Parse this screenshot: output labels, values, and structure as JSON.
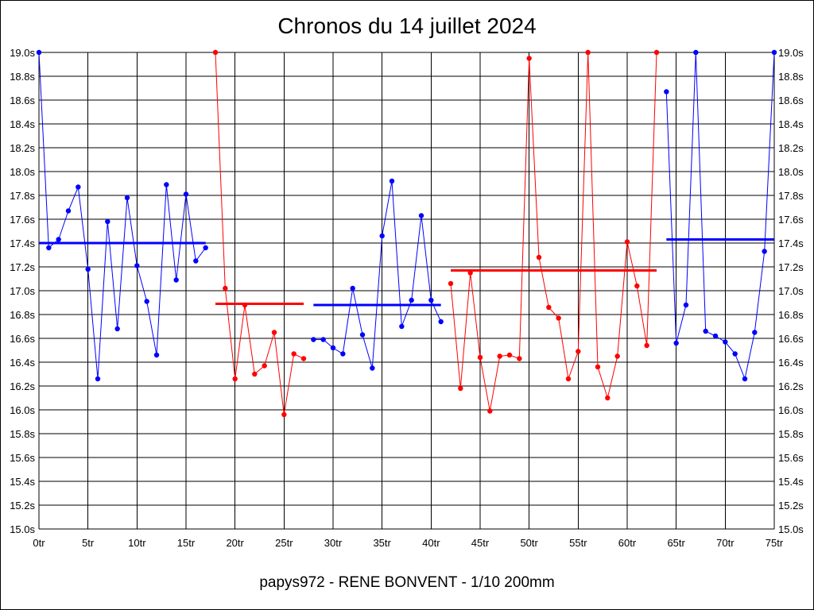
{
  "chart_data": {
    "type": "line",
    "title": "Chronos du 14 juillet 2024",
    "subtitle": "papys972 - RENE BONVENT - 1/10 200mm",
    "xlabel": "",
    "ylabel": "",
    "x_unit": "tr",
    "y_unit": "s",
    "xlim": [
      0,
      75
    ],
    "ylim": [
      15.0,
      19.0
    ],
    "x_ticks": [
      "0tr",
      "5tr",
      "10tr",
      "15tr",
      "20tr",
      "25tr",
      "30tr",
      "35tr",
      "40tr",
      "45tr",
      "50tr",
      "55tr",
      "60tr",
      "65tr",
      "70tr",
      "75tr"
    ],
    "y_ticks": [
      "15.0s",
      "15.2s",
      "15.4s",
      "15.6s",
      "15.8s",
      "16.0s",
      "16.2s",
      "16.4s",
      "16.6s",
      "16.8s",
      "17.0s",
      "17.2s",
      "17.4s",
      "17.6s",
      "17.8s",
      "18.0s",
      "18.2s",
      "18.4s",
      "18.6s",
      "18.8s",
      "19.0s"
    ],
    "grid": true,
    "colors": {
      "blue": "#0000ff",
      "red": "#ff0000",
      "grid": "#000000"
    },
    "series": [
      {
        "color": "#0000ff",
        "x": [
          0,
          1,
          2,
          3,
          4,
          5,
          6,
          7,
          8,
          9,
          10,
          11,
          12,
          13,
          14,
          15,
          16,
          17
        ],
        "y": [
          19.0,
          17.36,
          17.43,
          17.67,
          17.87,
          17.18,
          16.26,
          17.58,
          16.68,
          17.78,
          17.21,
          16.91,
          16.46,
          17.89,
          17.09,
          17.81,
          17.25,
          17.36
        ],
        "average": 17.4
      },
      {
        "color": "#ff0000",
        "x": [
          18,
          19,
          20,
          21,
          22,
          23,
          24,
          25,
          26,
          27
        ],
        "y": [
          19.0,
          17.02,
          16.26,
          16.88,
          16.3,
          16.37,
          16.65,
          15.96,
          16.47,
          16.43
        ],
        "average": 16.89
      },
      {
        "color": "#0000ff",
        "x": [
          28,
          29,
          30,
          31,
          32,
          33,
          34,
          35,
          36,
          37,
          38,
          39,
          40,
          41
        ],
        "y": [
          16.59,
          16.59,
          16.52,
          16.47,
          17.02,
          16.63,
          16.35,
          17.46,
          17.92,
          16.7,
          16.92,
          17.63,
          16.92,
          16.74
        ],
        "average": 16.88
      },
      {
        "color": "#ff0000",
        "x": [
          42,
          43,
          44,
          45,
          46,
          47,
          48,
          49,
          50,
          51,
          52,
          53,
          54,
          55,
          56,
          57,
          58,
          59,
          60,
          61,
          62,
          63
        ],
        "y": [
          17.06,
          16.18,
          17.15,
          16.44,
          15.99,
          16.45,
          16.46,
          16.43,
          18.95,
          17.28,
          16.86,
          16.77,
          16.26,
          16.49,
          19.0,
          16.36,
          16.1,
          16.45,
          17.41,
          17.04,
          16.54,
          19.0
        ],
        "average": 17.17
      },
      {
        "color": "#0000ff",
        "x": [
          64,
          65,
          66,
          67,
          68,
          69,
          70,
          71,
          72,
          73,
          74,
          75
        ],
        "y": [
          18.67,
          16.56,
          16.88,
          19.0,
          16.66,
          16.62,
          16.57,
          16.47,
          16.26,
          16.65,
          17.33,
          19.0
        ],
        "average": 17.43
      }
    ]
  }
}
